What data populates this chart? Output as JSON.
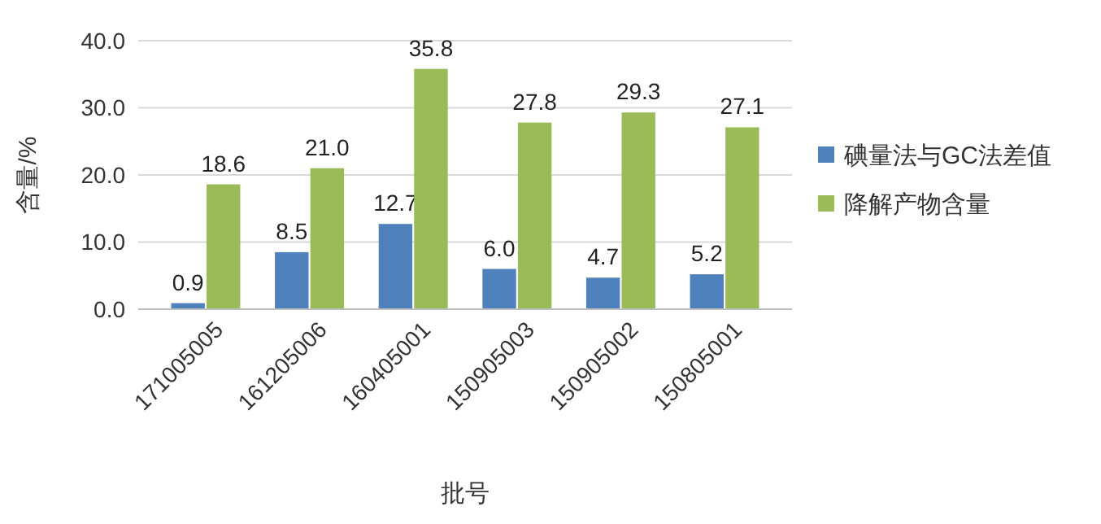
{
  "chart_data": {
    "type": "bar",
    "xlabel": "批号",
    "ylabel": "含量/%",
    "categories": [
      "171005005",
      "161205006",
      "160405001",
      "150905003",
      "150905002",
      "150805001"
    ],
    "series": [
      {
        "name": "碘量法与GC法差值",
        "color": "#4f81bd",
        "values": [
          0.9,
          8.5,
          12.7,
          6.0,
          4.7,
          5.2
        ],
        "value_labels": [
          "0.9",
          "8.5",
          "12.7",
          "6.0",
          "4.7",
          "5.2"
        ]
      },
      {
        "name": "降解产物含量",
        "color": "#9bbb59",
        "values": [
          18.6,
          21.0,
          35.8,
          27.8,
          29.3,
          27.1
        ],
        "value_labels": [
          "18.6",
          "21.0",
          "35.8",
          "27.8",
          "29.3",
          "27.1"
        ]
      }
    ],
    "ylim": [
      0,
      40
    ],
    "yticks": [
      {
        "value": 0,
        "label": "0.0"
      },
      {
        "value": 10,
        "label": "10.0"
      },
      {
        "value": 20,
        "label": "20.0"
      },
      {
        "value": 30,
        "label": "30.0"
      },
      {
        "value": 40,
        "label": "40.0"
      }
    ],
    "grid": "y",
    "legend": "right"
  }
}
